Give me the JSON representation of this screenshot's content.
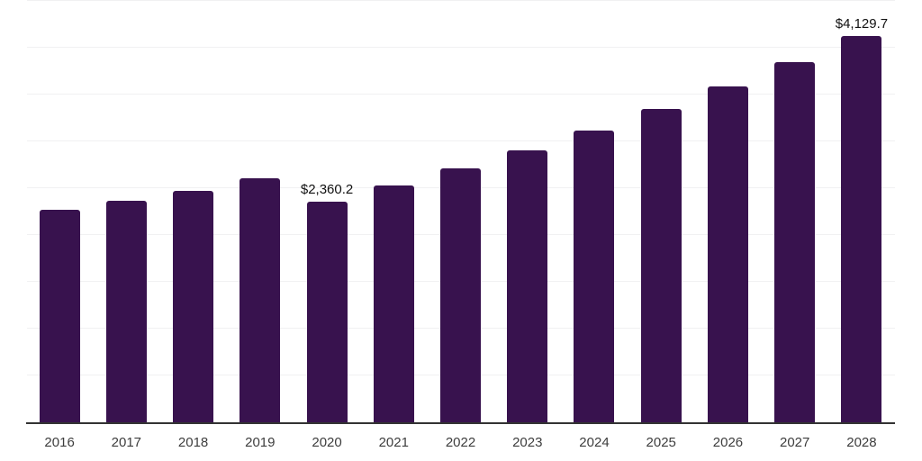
{
  "chart": {
    "background_color": "#ffffff",
    "bar_color": "#38124e",
    "gridline_color": "#f1f1f2",
    "axis_line_color": "#333333",
    "tick_label_color": "#3d3d3d",
    "data_label_color": "#111111"
  },
  "chart_data": {
    "type": "bar",
    "title": "",
    "xlabel": "",
    "ylabel": "",
    "categories": [
      "2016",
      "2017",
      "2018",
      "2019",
      "2020",
      "2021",
      "2022",
      "2023",
      "2024",
      "2025",
      "2026",
      "2027",
      "2028"
    ],
    "values": [
      2270,
      2370,
      2475,
      2605,
      2360.2,
      2525,
      2715,
      2905,
      3120,
      3345,
      3590,
      3850,
      4129.7
    ],
    "annotations": [
      {
        "category": "2020",
        "label": "$2,360.2"
      },
      {
        "category": "2028",
        "label": "$4,129.7"
      }
    ],
    "ylim": [
      0,
      4500
    ],
    "gridlines": {
      "visible": true,
      "step": 500
    },
    "y_tick_labels_visible": false,
    "legend": "none"
  }
}
